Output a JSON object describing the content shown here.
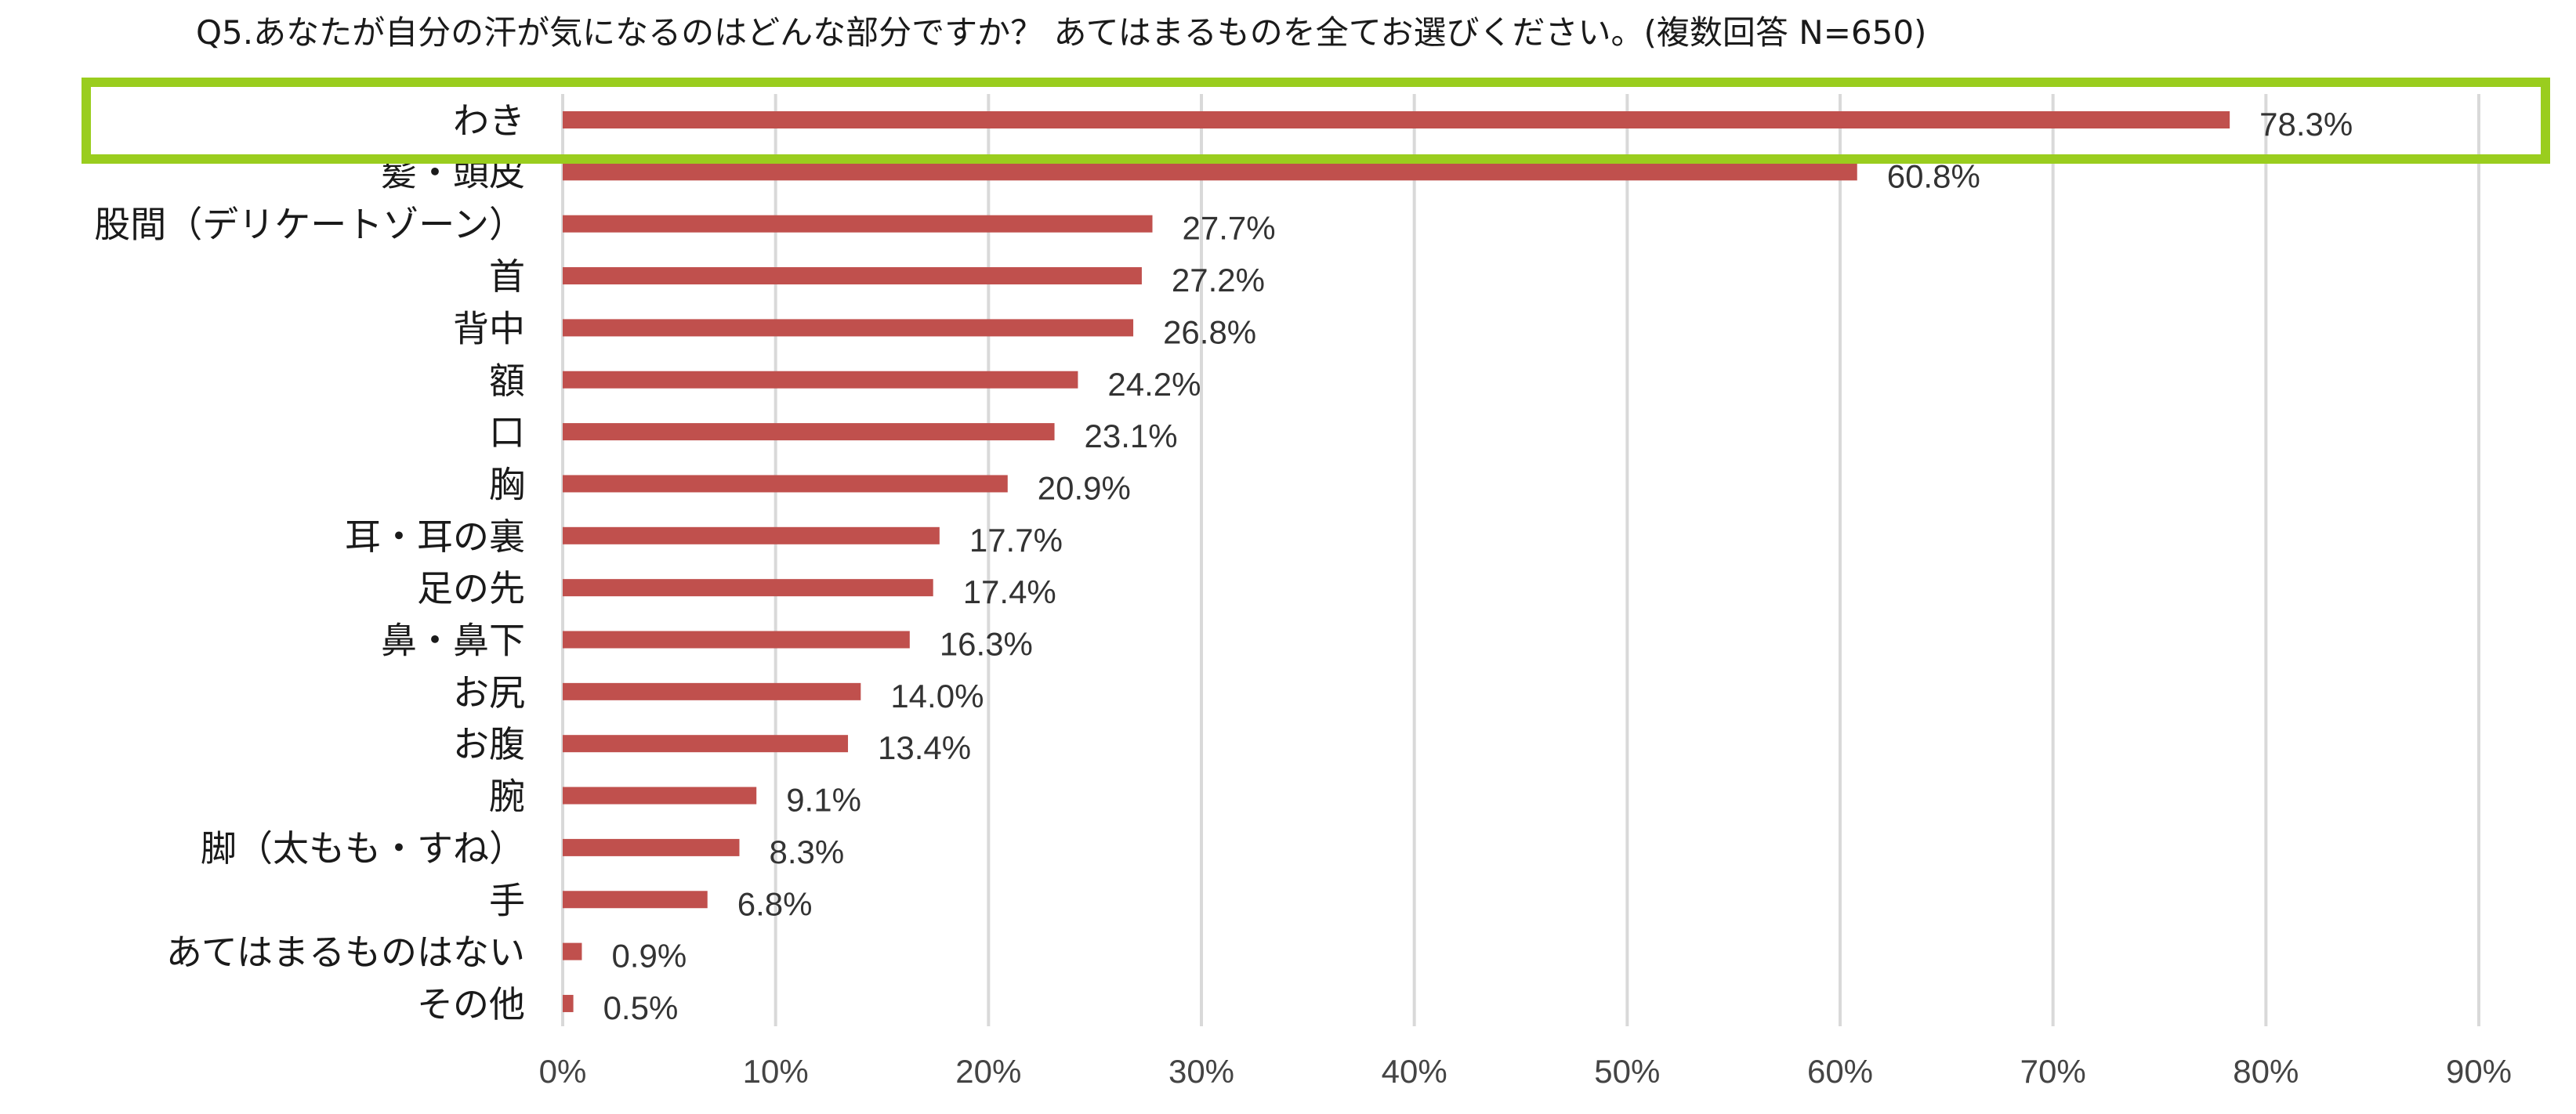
{
  "chart_data": {
    "type": "bar",
    "orientation": "horizontal",
    "title": "Q5.あなたが自分の汗が気になるのはどんな部分ですか？ あてはまるものを全てお選びください。(複数回答 N=650)",
    "categories": [
      "わき",
      "髪・頭皮",
      "股間（デリケートゾーン）",
      "首",
      "背中",
      "額",
      "口",
      "胸",
      "耳・耳の裏",
      "足の先",
      "鼻・鼻下",
      "お尻",
      "お腹",
      "腕",
      "脚（太もも・すね）",
      "手",
      "あてはまるものはない",
      "その他"
    ],
    "values": [
      78.3,
      60.8,
      27.7,
      27.2,
      26.8,
      24.2,
      23.1,
      20.9,
      17.7,
      17.4,
      16.3,
      14.0,
      13.4,
      9.1,
      8.3,
      6.8,
      0.9,
      0.5
    ],
    "value_labels": [
      "78.3%",
      "60.8%",
      "27.7%",
      "27.2%",
      "26.8%",
      "24.2%",
      "23.1%",
      "20.9%",
      "17.7%",
      "17.4%",
      "16.3%",
      "14.0%",
      "13.4%",
      "9.1%",
      "8.3%",
      "6.8%",
      "0.9%",
      "0.5%"
    ],
    "xlim": [
      0,
      90
    ],
    "xticks": [
      0,
      10,
      20,
      30,
      40,
      50,
      60,
      70,
      80,
      90
    ],
    "xtick_labels": [
      "0%",
      "10%",
      "20%",
      "30%",
      "40%",
      "50%",
      "60%",
      "70%",
      "80%",
      "90%"
    ],
    "grid": true,
    "bar_color": "#c0504d",
    "highlight": {
      "category": "わき",
      "color": "#9acd1e"
    }
  }
}
